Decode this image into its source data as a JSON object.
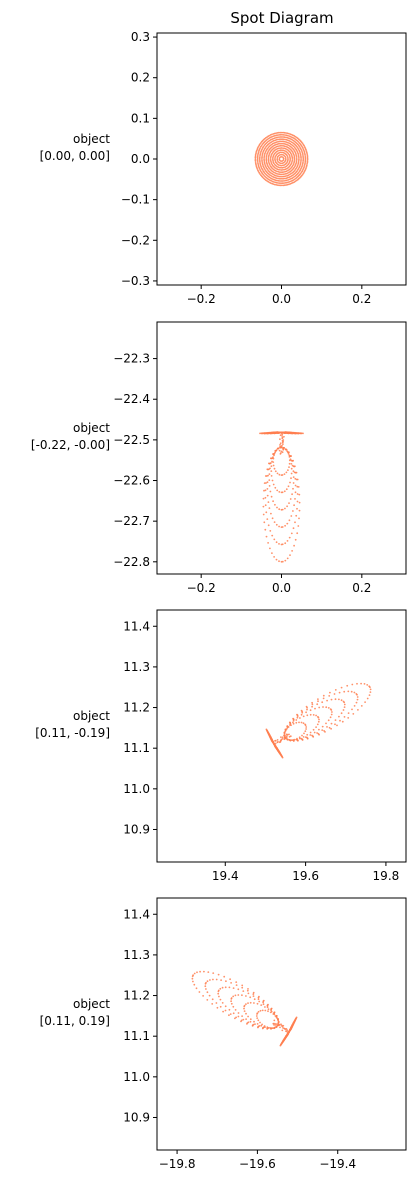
{
  "title": "Spot Diagram",
  "marker_color": "#ff7f50",
  "chart_data": [
    {
      "type": "scatter",
      "row_label": [
        "object",
        "[0.00, 0.00]"
      ],
      "xlim": [
        -0.31,
        0.31
      ],
      "ylim": [
        -0.31,
        0.31
      ],
      "xticks": [
        -0.2,
        0.0,
        0.2
      ],
      "xtick_labels": [
        "−0.2",
        "0.0",
        "0.2"
      ],
      "yticks": [
        -0.3,
        -0.2,
        -0.1,
        0.0,
        0.1,
        0.2,
        0.3
      ],
      "ytick_labels": [
        "−0.3",
        "−0.2",
        "−0.1",
        "0.0",
        "0.1",
        "0.2",
        "0.3"
      ],
      "centroid": [
        0.0,
        0.0
      ],
      "pattern": {
        "kind": "disk",
        "radius": 0.065
      }
    },
    {
      "type": "scatter",
      "row_label": [
        "object",
        "[-0.22, -0.00]"
      ],
      "xlim": [
        -0.31,
        0.31
      ],
      "ylim": [
        -22.83,
        -22.21
      ],
      "xticks": [
        -0.2,
        0.0,
        0.2
      ],
      "xtick_labels": [
        "−0.2",
        "0.0",
        "0.2"
      ],
      "yticks": [
        -22.8,
        -22.7,
        -22.6,
        -22.5,
        -22.4,
        -22.3
      ],
      "ytick_labels": [
        "−22.8",
        "−22.7",
        "−22.6",
        "−22.5",
        "−22.4",
        "−22.3"
      ],
      "centroid": [
        0.0,
        -22.5
      ],
      "pattern": {
        "kind": "coma",
        "head": [
          0.0,
          -22.48
        ],
        "tail": [
          0.0,
          -22.8
        ],
        "head_halfwidth": 0.06,
        "tail_halfwidth": 0.045
      }
    },
    {
      "type": "scatter",
      "row_label": [
        "object",
        "[0.11, -0.19]"
      ],
      "xlim": [
        19.23,
        19.85
      ],
      "ylim": [
        10.82,
        11.44
      ],
      "xticks": [
        19.4,
        19.6,
        19.8
      ],
      "xtick_labels": [
        "19.4",
        "19.6",
        "19.8"
      ],
      "yticks": [
        10.9,
        11.0,
        11.1,
        11.2,
        11.3,
        11.4
      ],
      "ytick_labels": [
        "10.9",
        "11.0",
        "11.1",
        "11.2",
        "11.3",
        "11.4"
      ],
      "centroid": [
        19.54,
        11.12
      ],
      "pattern": {
        "kind": "coma",
        "head": [
          19.52,
          11.11
        ],
        "tail": [
          19.76,
          11.25
        ],
        "head_halfwidth": 0.045,
        "tail_halfwidth": 0.04
      }
    },
    {
      "type": "scatter",
      "row_label": [
        "object",
        "[0.11, 0.19]"
      ],
      "xlim": [
        -19.85,
        -19.23
      ],
      "ylim": [
        10.82,
        11.44
      ],
      "xticks": [
        -19.8,
        -19.6,
        -19.4
      ],
      "xtick_labels": [
        "−19.8",
        "−19.6",
        "−19.4"
      ],
      "yticks": [
        10.9,
        11.0,
        11.1,
        11.2,
        11.3,
        11.4
      ],
      "ytick_labels": [
        "10.9",
        "11.0",
        "11.1",
        "11.2",
        "11.3",
        "11.4"
      ],
      "centroid": [
        -19.54,
        11.12
      ],
      "pattern": {
        "kind": "coma",
        "head": [
          -19.52,
          11.11
        ],
        "tail": [
          -19.76,
          11.25
        ],
        "head_halfwidth": 0.045,
        "tail_halfwidth": 0.04
      }
    }
  ]
}
